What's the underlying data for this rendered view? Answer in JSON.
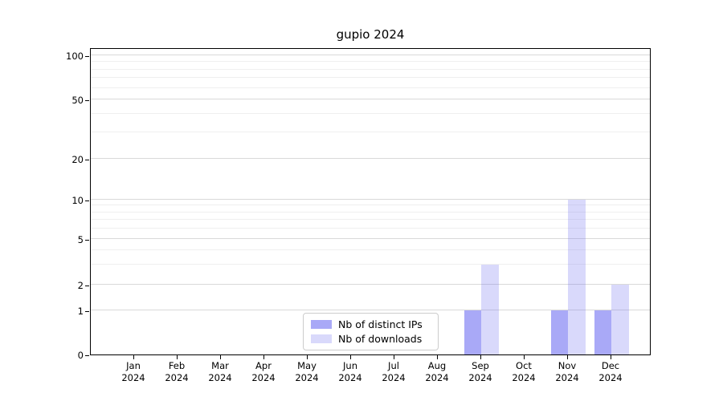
{
  "title": "gupio 2024",
  "legend": {
    "items": [
      {
        "label": "Nb of distinct IPs",
        "color": "rgba(117,117,242,0.62)"
      },
      {
        "label": "Nb of downloads",
        "color": "rgba(117,117,242,0.28)"
      }
    ]
  },
  "colors": {
    "distinct_ips_bar": "rgba(117,117,242,0.62)",
    "downloads_bar": "rgba(117,117,242,0.28)",
    "grid_major": "#d9d9d9",
    "grid_minor": "#efefef",
    "spine": "#000000"
  },
  "chart_data": {
    "type": "bar",
    "title": "gupio 2024",
    "categories": [
      "Jan 2024",
      "Feb 2024",
      "Mar 2024",
      "Apr 2024",
      "May 2024",
      "Jun 2024",
      "Jul 2024",
      "Aug 2024",
      "Sep 2024",
      "Oct 2024",
      "Nov 2024",
      "Dec 2024"
    ],
    "series": [
      {
        "name": "Nb of distinct IPs",
        "values": [
          0,
          0,
          0,
          0,
          0,
          0,
          0,
          0,
          1,
          0,
          1,
          1
        ]
      },
      {
        "name": "Nb of downloads",
        "values": [
          0,
          0,
          0,
          0,
          0,
          0,
          0,
          0,
          3,
          0,
          10,
          2
        ]
      }
    ],
    "xlabel": "",
    "ylabel": "",
    "yscale": "symlog",
    "yticks": [
      0,
      1,
      2,
      5,
      10,
      20,
      50,
      100
    ],
    "yticks_minor": [
      3,
      4,
      6,
      7,
      8,
      9,
      30,
      40,
      60,
      70,
      80,
      90
    ],
    "ylim": [
      0,
      113
    ],
    "grid": true,
    "legend_position": "lower center"
  }
}
